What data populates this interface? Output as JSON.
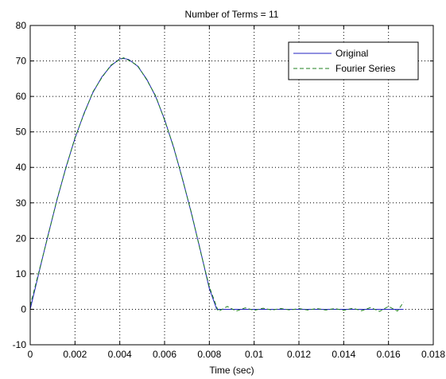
{
  "chart_data": {
    "type": "line",
    "title": "Number of Terms = 11",
    "xlabel": "Time (sec)",
    "ylabel": "",
    "xlim": [
      0,
      0.018
    ],
    "ylim": [
      -10,
      80
    ],
    "xticks": [
      0,
      0.002,
      0.004,
      0.006,
      0.008,
      0.01,
      0.012,
      0.014,
      0.016,
      0.018
    ],
    "yticks": [
      -10,
      0,
      10,
      20,
      30,
      40,
      50,
      60,
      70,
      80
    ],
    "xtick_labels": [
      "0",
      "0.002",
      "0.004",
      "0.006",
      "0.008",
      "0.01",
      "0.012",
      "0.014",
      "0.016",
      "0.018"
    ],
    "ytick_labels": [
      "-10",
      "0",
      "10",
      "20",
      "30",
      "40",
      "50",
      "60",
      "70",
      "80"
    ],
    "grid": true,
    "legend_position": "top-right",
    "series": [
      {
        "name": "Original",
        "color": "#2020c0",
        "style": "solid",
        "x": [
          0,
          0.0004,
          0.0008,
          0.0012,
          0.0016,
          0.002,
          0.0024,
          0.0028,
          0.0032,
          0.0036,
          0.004,
          0.00417,
          0.0044,
          0.0048,
          0.0052,
          0.0056,
          0.006,
          0.0064,
          0.0068,
          0.0072,
          0.0076,
          0.008,
          0.00833,
          0.009,
          0.01,
          0.011,
          0.012,
          0.013,
          0.014,
          0.015,
          0.016,
          0.01667
        ],
        "y": [
          0,
          10.6,
          21.0,
          30.9,
          40.1,
          48.2,
          55.2,
          61.1,
          65.5,
          68.6,
          70.6,
          70.7,
          70.4,
          68.5,
          64.9,
          60.0,
          53.5,
          45.7,
          36.8,
          27.0,
          16.6,
          5.8,
          0,
          0,
          0,
          0,
          0,
          0,
          0,
          0,
          0,
          0
        ]
      },
      {
        "name": "Fourier Series",
        "color": "#208020",
        "style": "dashed",
        "x": [
          0,
          0.0004,
          0.0008,
          0.0012,
          0.0016,
          0.002,
          0.0024,
          0.0028,
          0.0032,
          0.0036,
          0.004,
          0.00417,
          0.0044,
          0.0048,
          0.0052,
          0.0056,
          0.006,
          0.0064,
          0.0068,
          0.0072,
          0.0076,
          0.008,
          0.0084,
          0.0088,
          0.0092,
          0.0096,
          0.01,
          0.0104,
          0.0108,
          0.0112,
          0.0116,
          0.012,
          0.0124,
          0.0128,
          0.0132,
          0.0136,
          0.014,
          0.0144,
          0.0148,
          0.0152,
          0.0156,
          0.016,
          0.0164,
          0.01667
        ],
        "y": [
          1.0,
          10.9,
          20.8,
          31.1,
          39.9,
          48.4,
          55.0,
          61.3,
          65.3,
          68.8,
          70.4,
          70.9,
          70.2,
          68.7,
          64.7,
          60.2,
          53.3,
          45.9,
          36.6,
          27.2,
          16.4,
          6.3,
          -0.6,
          0.8,
          -0.5,
          0.4,
          -0.3,
          0.3,
          -0.2,
          0.2,
          -0.2,
          0.2,
          -0.2,
          0.2,
          -0.2,
          0.2,
          -0.3,
          0.3,
          -0.4,
          0.5,
          -0.6,
          0.8,
          -0.5,
          2.0
        ]
      }
    ]
  }
}
